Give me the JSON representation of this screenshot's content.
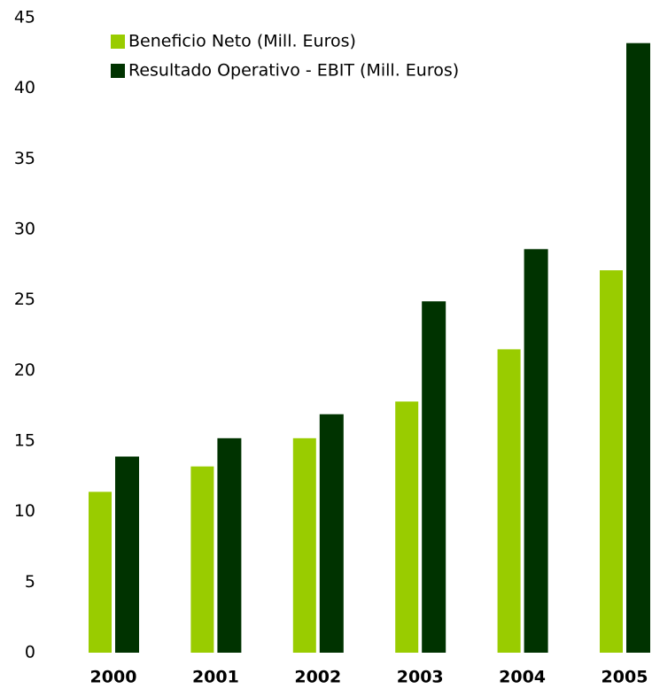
{
  "chart_data": {
    "type": "bar",
    "categories": [
      "2000",
      "2001",
      "2002",
      "2003",
      "2004",
      "2005"
    ],
    "series": [
      {
        "name": "Beneficio Neto (Mill. Euros)",
        "color": "#99cc00",
        "values": [
          11.4,
          13.2,
          15.2,
          17.8,
          21.5,
          27.1
        ]
      },
      {
        "name": "Resultado Operativo - EBIT (Mill. Euros)",
        "color": "#003300",
        "values": [
          13.9,
          15.2,
          16.9,
          24.9,
          28.6,
          43.2
        ]
      }
    ],
    "ylim": [
      0,
      45
    ],
    "yticks": [
      0,
      5,
      10,
      15,
      20,
      25,
      30,
      35,
      40,
      45
    ],
    "grid": false,
    "legend": "top-left"
  }
}
